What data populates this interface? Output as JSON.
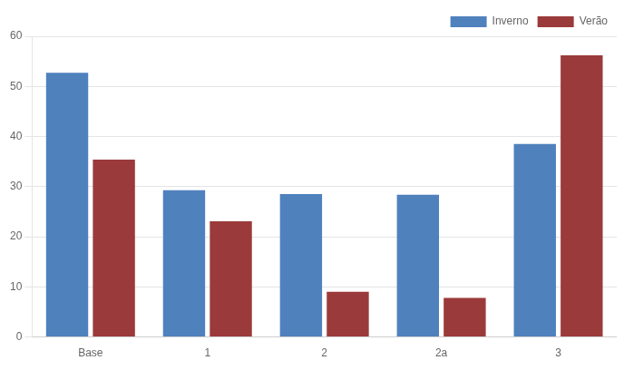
{
  "chart_data": {
    "type": "bar",
    "categories": [
      "Base",
      "1",
      "2",
      "2a",
      "3"
    ],
    "series": [
      {
        "name": "Inverno",
        "color": "#4F81BD",
        "values": [
          52.7,
          29.3,
          28.5,
          28.4,
          38.5
        ]
      },
      {
        "name": "Verão",
        "color": "#9B3A3A",
        "values": [
          35.4,
          23.1,
          9.0,
          7.8,
          56.2
        ]
      }
    ],
    "ylim": [
      0,
      60
    ],
    "yticks": [
      0,
      10,
      20,
      30,
      40,
      50,
      60
    ],
    "grid": true,
    "legend": "upper right"
  }
}
